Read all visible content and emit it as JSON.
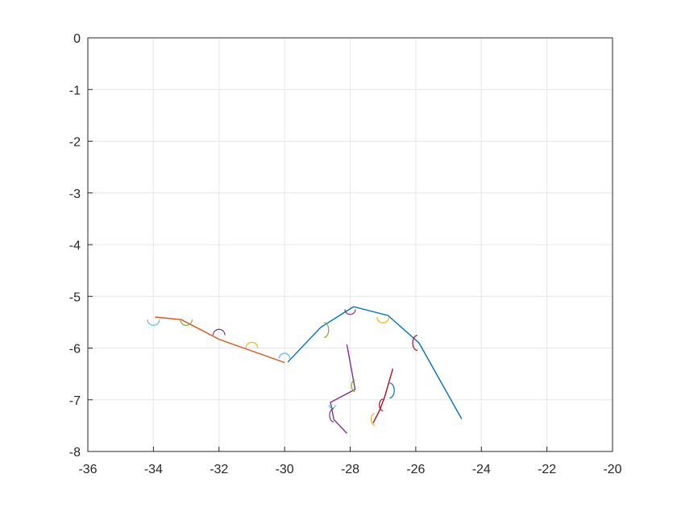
{
  "chart_data": {
    "type": "line",
    "title": "",
    "xlabel": "",
    "ylabel": "",
    "xlim": [
      -36,
      -20
    ],
    "ylim": [
      -8,
      0
    ],
    "grid": true,
    "legend": "none",
    "x_ticks": [
      "-36",
      "-34",
      "-32",
      "-30",
      "-28",
      "-26",
      "-24",
      "-22",
      "-20"
    ],
    "y_ticks": [
      "0",
      "-1",
      "-2",
      "-3",
      "-4",
      "-5",
      "-6",
      "-7",
      "-8"
    ],
    "colors": {
      "blue": "#0072BD",
      "orange": "#D95319",
      "yellow": "#EDB120",
      "purple": "#7E2F8E",
      "green": "#77AC30",
      "cyan": "#4DBEEE",
      "red": "#A2142F",
      "grid": "#e6e6e6",
      "axis": "#262626"
    },
    "series": [
      {
        "color": "blue",
        "x": [
          -29.9,
          -28.9,
          -27.9,
          -26.85,
          -25.9,
          -24.6
        ],
        "y": [
          -6.27,
          -5.6,
          -5.2,
          -5.37,
          -5.9,
          -7.37
        ]
      },
      {
        "color": "orange",
        "x": [
          -33.95,
          -33.15,
          -32.0,
          -30.0
        ],
        "y": [
          -5.4,
          -5.45,
          -5.83,
          -6.28
        ]
      },
      {
        "color": "purple",
        "x": [
          -28.1,
          -27.85,
          -28.6,
          -28.5,
          -28.1
        ],
        "y": [
          -5.93,
          -6.8,
          -7.05,
          -7.38,
          -7.65
        ]
      },
      {
        "color": "red",
        "x": [
          -26.7,
          -26.95,
          -27.1,
          -27.3
        ],
        "y": [
          -6.4,
          -6.95,
          -7.2,
          -7.45
        ]
      }
    ],
    "arcs": [
      {
        "color": "cyan",
        "cx": -34.0,
        "cy": -5.45,
        "r": 0.18,
        "side": "below"
      },
      {
        "color": "green",
        "cx": -33.0,
        "cy": -5.45,
        "r": 0.18,
        "side": "below"
      },
      {
        "color": "purple",
        "cx": -32.0,
        "cy": -5.75,
        "r": 0.18,
        "side": "above"
      },
      {
        "color": "yellow",
        "cx": -31.0,
        "cy": -6.0,
        "r": 0.18,
        "side": "above"
      },
      {
        "color": "cyan",
        "cx": -30.0,
        "cy": -6.2,
        "r": 0.16,
        "side": "above"
      },
      {
        "color": "green",
        "cx": -28.8,
        "cy": -5.65,
        "r": 0.18,
        "side": "right"
      },
      {
        "color": "purple",
        "cx": -28.0,
        "cy": -5.25,
        "r": 0.16,
        "side": "below"
      },
      {
        "color": "yellow",
        "cx": -27.0,
        "cy": -5.4,
        "r": 0.18,
        "side": "below"
      },
      {
        "color": "red",
        "cx": -25.95,
        "cy": -5.9,
        "r": 0.18,
        "side": "left"
      },
      {
        "color": "green",
        "cx": -27.85,
        "cy": -6.73,
        "r": 0.14,
        "side": "left"
      },
      {
        "color": "cyan",
        "cx": -28.55,
        "cy": -7.1,
        "r": 0.1,
        "side": "below"
      },
      {
        "color": "purple",
        "cx": -28.5,
        "cy": -7.3,
        "r": 0.16,
        "side": "left"
      },
      {
        "color": "blue",
        "cx": -26.8,
        "cy": -6.82,
        "r": 0.18,
        "side": "right"
      },
      {
        "color": "red",
        "cx": -27.0,
        "cy": -7.1,
        "r": 0.14,
        "side": "left"
      },
      {
        "color": "yellow",
        "cx": -27.25,
        "cy": -7.38,
        "r": 0.14,
        "side": "left"
      }
    ]
  }
}
